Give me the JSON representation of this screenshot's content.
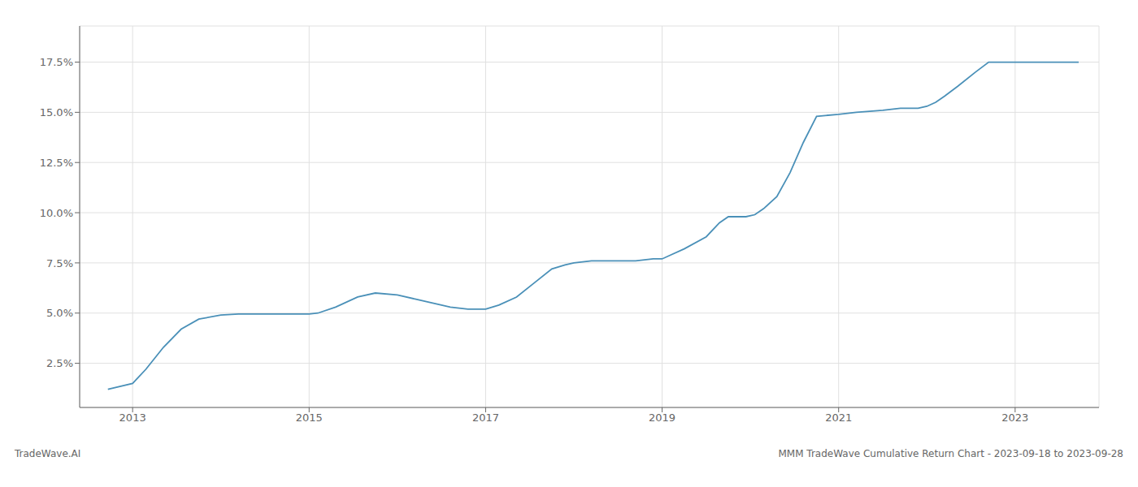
{
  "chart_data": {
    "type": "line",
    "x": [
      2012.72,
      2013.0,
      2013.15,
      2013.35,
      2013.55,
      2013.75,
      2014.0,
      2014.2,
      2014.5,
      2014.7,
      2014.85,
      2015.0,
      2015.1,
      2015.3,
      2015.55,
      2015.75,
      2016.0,
      2016.2,
      2016.4,
      2016.6,
      2016.8,
      2017.0,
      2017.15,
      2017.35,
      2017.55,
      2017.75,
      2017.9,
      2018.0,
      2018.2,
      2018.5,
      2018.7,
      2018.9,
      2019.0,
      2019.1,
      2019.25,
      2019.5,
      2019.65,
      2019.75,
      2019.85,
      2019.95,
      2020.05,
      2020.15,
      2020.3,
      2020.45,
      2020.6,
      2020.75,
      2021.0,
      2021.2,
      2021.5,
      2021.7,
      2021.9,
      2022.0,
      2022.1,
      2022.2,
      2022.35,
      2022.55,
      2022.7,
      2023.0,
      2023.5,
      2023.72
    ],
    "values": [
      0.012,
      0.015,
      0.022,
      0.033,
      0.042,
      0.047,
      0.049,
      0.0495,
      0.0495,
      0.0495,
      0.0495,
      0.0495,
      0.05,
      0.053,
      0.058,
      0.06,
      0.059,
      0.057,
      0.055,
      0.053,
      0.052,
      0.052,
      0.054,
      0.058,
      0.065,
      0.072,
      0.074,
      0.075,
      0.076,
      0.076,
      0.076,
      0.077,
      0.077,
      0.079,
      0.082,
      0.088,
      0.095,
      0.098,
      0.098,
      0.098,
      0.099,
      0.102,
      0.108,
      0.12,
      0.135,
      0.148,
      0.149,
      0.15,
      0.151,
      0.152,
      0.152,
      0.153,
      0.155,
      0.158,
      0.163,
      0.17,
      0.175,
      0.175,
      0.175,
      0.175
    ],
    "color": "#4a90b8",
    "xlim": [
      2012.4,
      2023.95
    ],
    "xticks": [
      2013,
      2015,
      2017,
      2019,
      2021,
      2023
    ],
    "ylim": [
      0.003,
      0.193
    ],
    "yticks": [
      {
        "value": 0.025,
        "label": "2.5%"
      },
      {
        "value": 0.05,
        "label": "5.0%"
      },
      {
        "value": 0.075,
        "label": "7.5%"
      },
      {
        "value": 0.1,
        "label": "10.0%"
      },
      {
        "value": 0.125,
        "label": "12.5%"
      },
      {
        "value": 0.15,
        "label": "15.0%"
      },
      {
        "value": 0.175,
        "label": "17.5%"
      }
    ],
    "grid": true,
    "annotations": [
      "TradeWave.AI",
      "MMM TradeWave Cumulative Return Chart - 2023-09-18 to 2023-09-28"
    ]
  }
}
